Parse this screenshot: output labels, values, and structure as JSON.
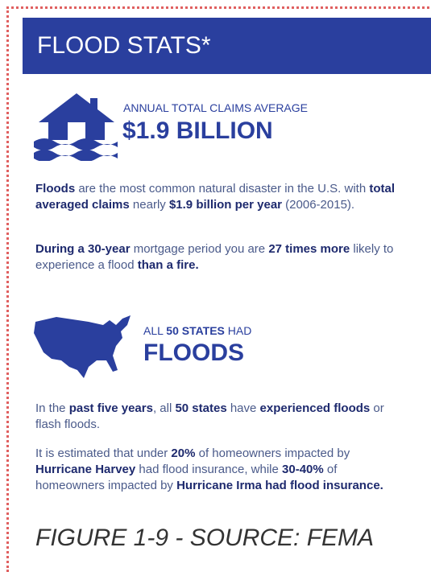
{
  "header": {
    "title": "FLOOD STATS*"
  },
  "claims": {
    "label": "ANNUAL TOTAL CLAIMS AVERAGE",
    "value": "$1.9 BILLION",
    "paragraphs": [
      [
        {
          "text": "Floods",
          "bold": true
        },
        {
          "text": " are the most common natural disaster in the U.S. with ",
          "bold": false
        },
        {
          "text": "total averaged claims",
          "bold": true
        },
        {
          "text": " nearly ",
          "bold": false
        },
        {
          "text": "$1.9 billion per year",
          "bold": true
        },
        {
          "text": " (2006-2015).",
          "bold": false
        }
      ],
      [
        {
          "text": "During a 30-year",
          "bold": true
        },
        {
          "text": " mortgage period you are ",
          "bold": false
        },
        {
          "text": "27 times more",
          "bold": true
        },
        {
          "text": " likely to experience a flood ",
          "bold": false
        },
        {
          "text": "than a fire.",
          "bold": true
        }
      ]
    ]
  },
  "states": {
    "label": [
      {
        "text": "ALL ",
        "bold": false
      },
      {
        "text": "50 STATES",
        "bold": true
      },
      {
        "text": " HAD",
        "bold": false
      }
    ],
    "value": "FLOODS",
    "paragraphs": [
      [
        {
          "text": "In the ",
          "bold": false
        },
        {
          "text": "past five years",
          "bold": true
        },
        {
          "text": ", all ",
          "bold": false
        },
        {
          "text": "50 states",
          "bold": true
        },
        {
          "text": " have ",
          "bold": false
        },
        {
          "text": "experienced floods",
          "bold": true
        },
        {
          "text": " or flash floods.",
          "bold": false
        }
      ],
      [
        {
          "text": "It is estimated that under ",
          "bold": false
        },
        {
          "text": "20%",
          "bold": true
        },
        {
          "text": " of homeowners impacted by ",
          "bold": false
        },
        {
          "text": "Hurricane Harvey",
          "bold": true
        },
        {
          "text": " had flood insurance, while ",
          "bold": false
        },
        {
          "text": "30-40%",
          "bold": true
        },
        {
          "text": " of homeowners impacted by ",
          "bold": false
        },
        {
          "text": "Hurricane Irma had flood insurance.",
          "bold": true
        }
      ]
    ]
  },
  "caption": "FIGURE 1-9 - SOURCE: FEMA"
}
